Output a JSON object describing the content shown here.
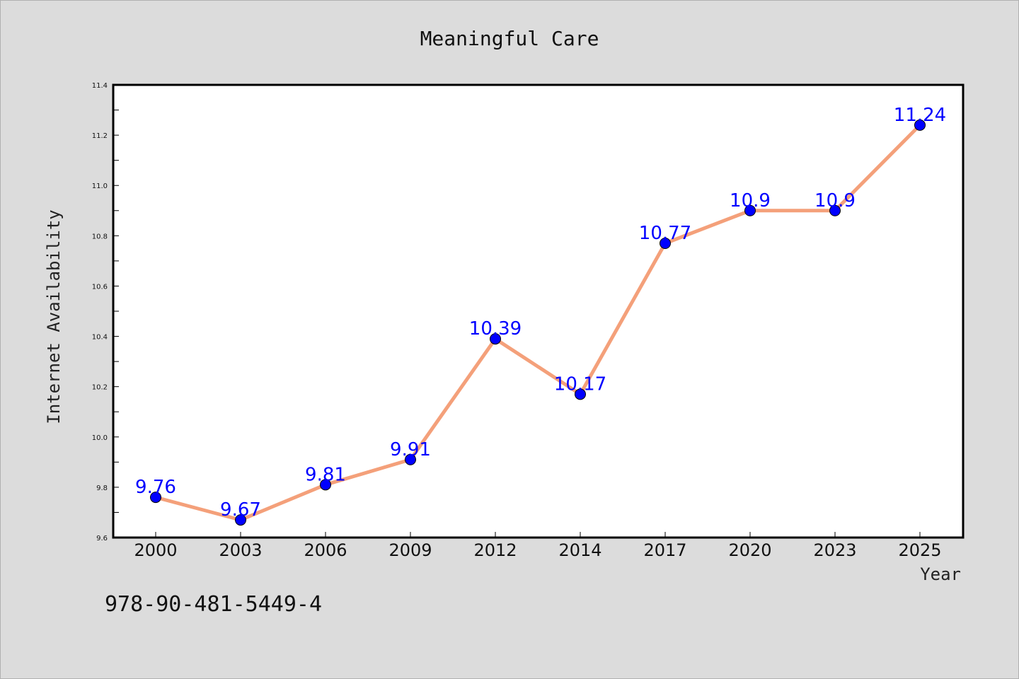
{
  "chart_data": {
    "type": "line",
    "title": "Meaningful Care",
    "xlabel": "Year",
    "ylabel": "Internet Availability",
    "categories": [
      "2000",
      "2003",
      "2006",
      "2009",
      "2012",
      "2014",
      "2017",
      "2020",
      "2023",
      "2025"
    ],
    "series": [
      {
        "values": [
          9.76,
          9.67,
          9.81,
          9.91,
          10.39,
          10.17,
          10.77,
          10.9,
          10.9,
          11.24
        ]
      }
    ],
    "data_labels": [
      "9.76",
      "9.67",
      "9.81",
      "9.91",
      "10.39",
      "10.17",
      "10.77",
      "10.9",
      "10.9",
      "11.24"
    ],
    "ylim": [
      9.6,
      11.4
    ],
    "yticks": [
      "9.6",
      "9.8",
      "10.0",
      "10.2",
      "10.4",
      "10.6",
      "10.8",
      "11.0",
      "11.2",
      "11.4"
    ],
    "grid": false,
    "legend": "none",
    "colors": {
      "line": "#f4a07a",
      "marker": "#0000ff",
      "label": "#0000ff",
      "plot_bg": "#ffffff",
      "page_bg": "#dcdcdc"
    }
  },
  "footer": {
    "isbn": "978-90-481-5449-4"
  }
}
